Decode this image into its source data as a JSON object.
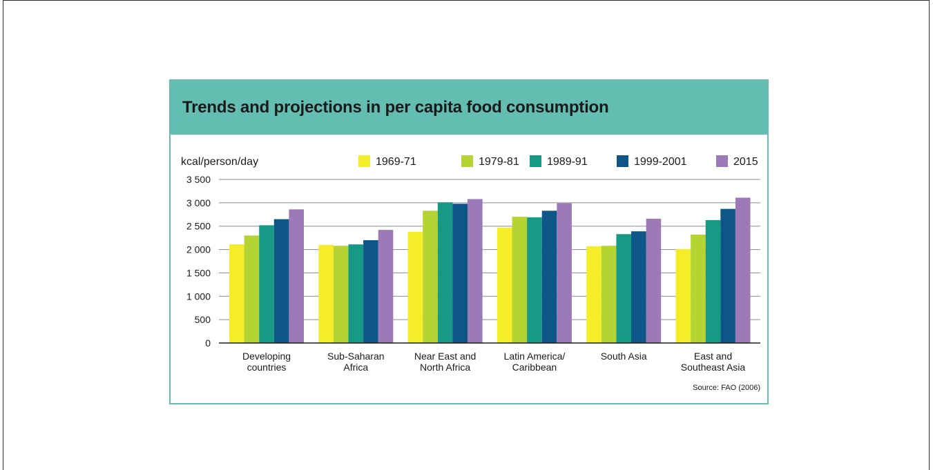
{
  "header": {
    "title": "Trends and projections in per capita food consumption"
  },
  "footer": {
    "source": "Source: FAO (2006)"
  },
  "chart_data": {
    "type": "bar",
    "title": "Trends and projections in per capita food consumption",
    "ylabel": "kcal/person/day",
    "xlabel": "",
    "ylim": [
      0,
      3500
    ],
    "yticks": [
      0,
      500,
      1000,
      1500,
      2000,
      2500,
      3000,
      3500
    ],
    "ytick_labels": [
      "0",
      "500",
      "1 000",
      "1 500",
      "2 000",
      "2 500",
      "3 000",
      "3 500"
    ],
    "grid": true,
    "legend": "top-right",
    "categories": [
      [
        "Developing",
        "countries"
      ],
      [
        "Sub-Saharan",
        "Africa"
      ],
      [
        "Near East and",
        "North Africa"
      ],
      [
        "Latin America/",
        "Caribbean"
      ],
      [
        "South Asia"
      ],
      [
        "East and",
        "Southeast Asia"
      ]
    ],
    "series": [
      {
        "name": "1969-71",
        "color": "#f5ec2a",
        "values": [
          2110,
          2100,
          2380,
          2470,
          2070,
          2010
        ]
      },
      {
        "name": "1979-81",
        "color": "#b6d334",
        "values": [
          2300,
          2080,
          2830,
          2700,
          2080,
          2320
        ]
      },
      {
        "name": "1989-91",
        "color": "#169a86",
        "values": [
          2520,
          2110,
          3010,
          2690,
          2330,
          2630
        ]
      },
      {
        "name": "1999-2001",
        "color": "#0d5687",
        "values": [
          2650,
          2200,
          2980,
          2830,
          2390,
          2870
        ]
      },
      {
        "name": "2015",
        "color": "#9c79b7",
        "values": [
          2860,
          2420,
          3080,
          2990,
          2660,
          3110
        ]
      }
    ]
  }
}
